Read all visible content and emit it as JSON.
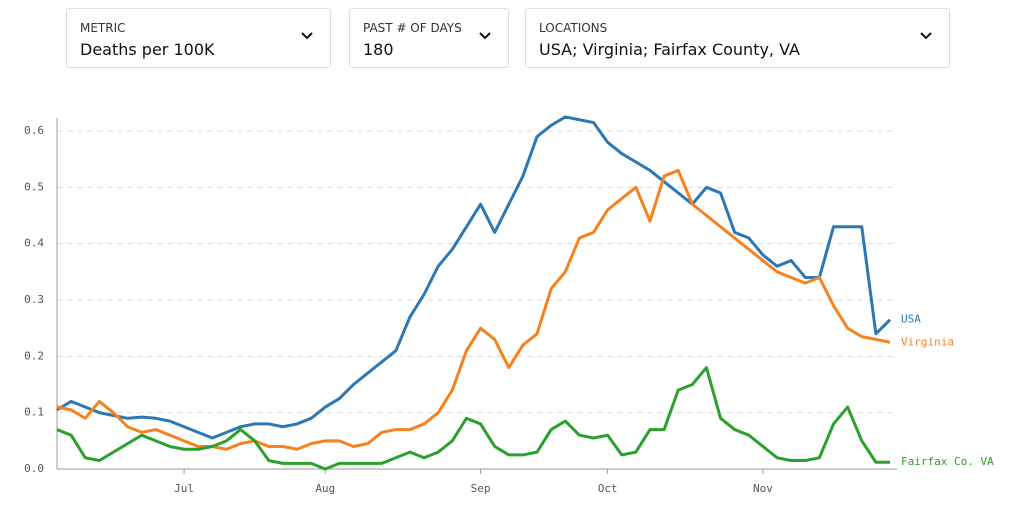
{
  "controls": [
    {
      "label": "METRIC",
      "value": "Deaths per 100K"
    },
    {
      "label": "PAST # OF DAYS",
      "value": "180"
    },
    {
      "label": "LOCATIONS",
      "value": "USA; Virginia; Fairfax County, VA"
    }
  ],
  "chart_data": {
    "type": "line",
    "categories": [
      null,
      null,
      null,
      null,
      null,
      null,
      null,
      null,
      null,
      "Jul",
      null,
      null,
      null,
      null,
      null,
      null,
      null,
      null,
      null,
      "Aug",
      null,
      null,
      null,
      null,
      null,
      null,
      null,
      null,
      null,
      null,
      "Sep",
      null,
      null,
      null,
      null,
      null,
      null,
      null,
      null,
      "Oct",
      null,
      null,
      null,
      null,
      null,
      null,
      null,
      null,
      null,
      null,
      "Nov",
      null,
      null,
      null,
      null,
      null,
      null,
      null,
      null,
      null
    ],
    "series": [
      {
        "name": "USA",
        "color": "#2b78b4",
        "values": [
          0.105,
          0.12,
          0.11,
          0.1,
          0.095,
          0.09,
          0.092,
          0.09,
          0.085,
          0.075,
          0.065,
          0.055,
          0.065,
          0.075,
          0.08,
          0.08,
          0.075,
          0.08,
          0.09,
          0.11,
          0.125,
          0.15,
          0.17,
          0.19,
          0.21,
          0.27,
          0.31,
          0.36,
          0.39,
          0.43,
          0.47,
          0.42,
          0.47,
          0.52,
          0.59,
          0.61,
          0.625,
          0.62,
          0.615,
          0.58,
          0.56,
          0.545,
          0.53,
          0.51,
          0.49,
          0.47,
          0.5,
          0.49,
          0.42,
          0.41,
          0.38,
          0.36,
          0.37,
          0.34,
          0.34,
          0.43,
          0.43,
          0.43,
          0.24,
          0.265
        ]
      },
      {
        "name": "Virginia",
        "color": "#f5821f",
        "values": [
          0.11,
          0.105,
          0.09,
          0.12,
          0.1,
          0.075,
          0.065,
          0.07,
          0.06,
          0.05,
          0.04,
          0.04,
          0.035,
          0.045,
          0.05,
          0.04,
          0.04,
          0.035,
          0.045,
          0.05,
          0.05,
          0.04,
          0.045,
          0.065,
          0.07,
          0.07,
          0.08,
          0.1,
          0.14,
          0.21,
          0.25,
          0.23,
          0.18,
          0.22,
          0.24,
          0.32,
          0.35,
          0.41,
          0.42,
          0.46,
          0.48,
          0.5,
          0.44,
          0.52,
          0.53,
          0.47,
          0.45,
          0.43,
          0.41,
          0.39,
          0.37,
          0.35,
          0.34,
          0.33,
          0.34,
          0.29,
          0.25,
          0.235,
          0.23,
          0.225
        ]
      },
      {
        "name": "Fairfax Co. VA",
        "color": "#2ca02c",
        "values": [
          0.07,
          0.06,
          0.02,
          0.015,
          0.03,
          0.045,
          0.06,
          0.05,
          0.04,
          0.035,
          0.035,
          0.04,
          0.05,
          0.07,
          0.05,
          0.015,
          0.01,
          0.01,
          0.01,
          0.0,
          0.01,
          0.01,
          0.01,
          0.01,
          0.02,
          0.03,
          0.02,
          0.03,
          0.05,
          0.09,
          0.08,
          0.04,
          0.025,
          0.025,
          0.03,
          0.07,
          0.085,
          0.06,
          0.055,
          0.06,
          0.025,
          0.03,
          0.07,
          0.07,
          0.14,
          0.15,
          0.18,
          0.09,
          0.07,
          0.06,
          0.04,
          0.02,
          0.015,
          0.015,
          0.02,
          0.08,
          0.11,
          0.05,
          0.012,
          0.012
        ]
      }
    ],
    "ylim": [
      0,
      0.6
    ],
    "yticks": [
      {
        "value": 0,
        "label": "0.0"
      },
      0.1,
      0.2,
      0.3,
      0.4,
      0.5,
      0.6
    ],
    "grid": true
  }
}
